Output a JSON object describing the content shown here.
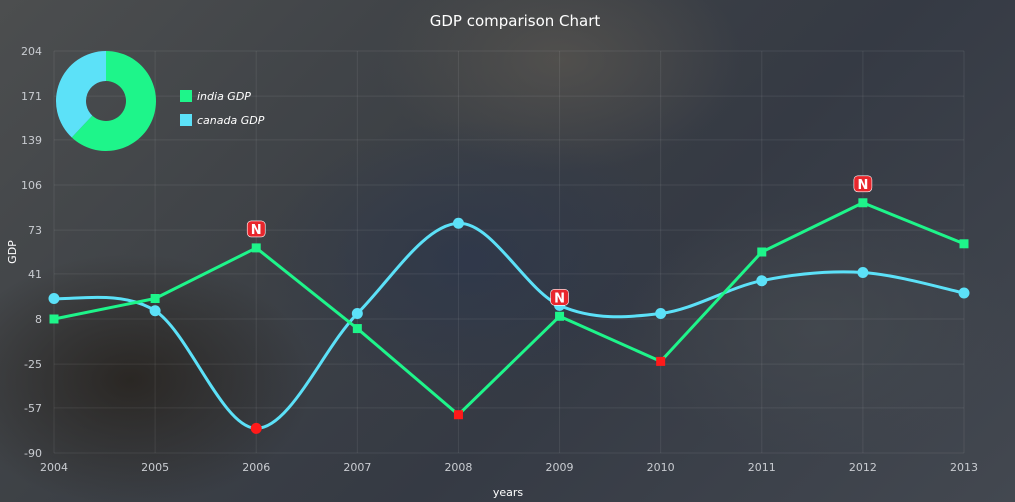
{
  "chart_data": {
    "type": "line",
    "title": "GDP comparison Chart",
    "xlabel": "years",
    "ylabel": "GDP",
    "x": [
      "2004",
      "2005",
      "2006",
      "2007",
      "2008",
      "2009",
      "2010",
      "2011",
      "2012",
      "2013"
    ],
    "ylim": [
      -90,
      204
    ],
    "yticks": [
      -90,
      -57,
      -25,
      8,
      41,
      73,
      106,
      139,
      171,
      204
    ],
    "grid": true,
    "legend_position": "top-left",
    "series": [
      {
        "name": "india GDP",
        "color": "#1ef58a",
        "line": "straight",
        "marker": "square",
        "values": [
          8,
          23,
          60,
          1,
          -62,
          10,
          -23,
          57,
          93,
          63
        ],
        "markers": [
          "normal",
          "normal",
          "N",
          "normal",
          "low",
          "N",
          "low",
          "normal",
          "N",
          "normal"
        ]
      },
      {
        "name": "canada GDP",
        "color": "#5ce1f8",
        "line": "smooth",
        "marker": "circle",
        "values": [
          23,
          14,
          -72,
          12,
          78,
          18,
          12,
          36,
          42,
          27
        ],
        "markers": [
          "normal",
          "normal",
          "low",
          "normal",
          "normal",
          "normal",
          "normal",
          "normal",
          "normal",
          "normal"
        ]
      }
    ],
    "pie": {
      "type": "donut",
      "slices": [
        {
          "name": "india GDP",
          "value": 62,
          "color": "#1ef58a"
        },
        {
          "name": "canada GDP",
          "value": 38,
          "color": "#5ce1f8"
        }
      ]
    },
    "annotations": {
      "note_symbol": "N",
      "note_color": "#e8262c",
      "low_marker_color": "#ff1a1a"
    }
  }
}
